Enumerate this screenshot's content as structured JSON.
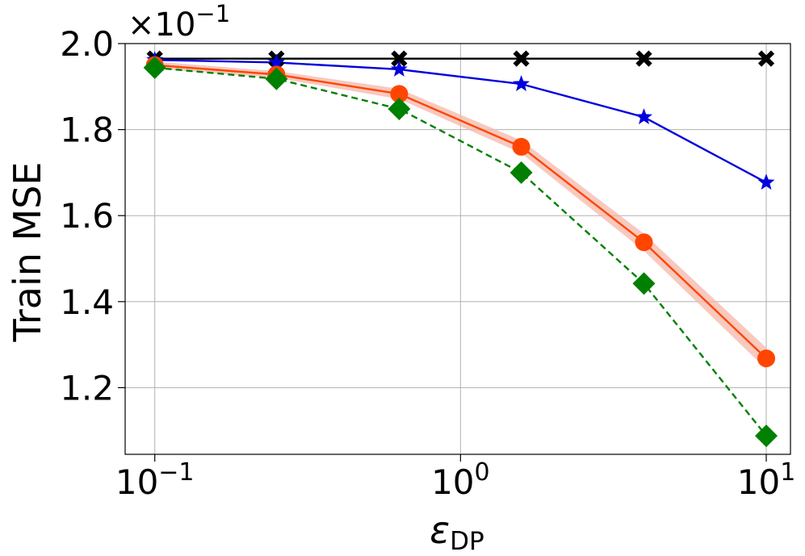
{
  "chart_data": {
    "type": "line",
    "xscale": "log",
    "xlabel_main": "ε",
    "xlabel_sub": "DP",
    "ylabel": "Train MSE",
    "y_multiplier_label": "×10",
    "y_multiplier_exp": "−1",
    "xlim": [
      0.08,
      12.0
    ],
    "ylim": [
      1.045,
      2.0
    ],
    "grid": true,
    "legend": "none",
    "x_ticks": [
      {
        "value": 0.1,
        "base": "10",
        "exp": "−1"
      },
      {
        "value": 1,
        "base": "10",
        "exp": "0"
      },
      {
        "value": 10,
        "base": "10",
        "exp": "1"
      }
    ],
    "y_ticks": [
      {
        "value": 1.2,
        "label": "1.2"
      },
      {
        "value": 1.4,
        "label": "1.4"
      },
      {
        "value": 1.6,
        "label": "1.6"
      },
      {
        "value": 1.8,
        "label": "1.8"
      },
      {
        "value": 2.0,
        "label": "2.0"
      }
    ],
    "x": [
      0.1,
      0.25,
      0.63,
      1.58,
      3.98,
      10.0
    ],
    "series": [
      {
        "color": "#000000",
        "linestyle": "solid",
        "marker": "x",
        "values": [
          1.965,
          1.965,
          1.965,
          1.965,
          1.965,
          1.965
        ]
      },
      {
        "color": "#0000dd",
        "linestyle": "solid",
        "marker": "star",
        "values": [
          1.962,
          1.956,
          1.94,
          1.906,
          1.829,
          1.677
        ]
      },
      {
        "color": "#ff4500",
        "linestyle": "solid",
        "marker": "circle",
        "band_color": "#f6b7aa",
        "band": [
          0.008,
          0.008,
          0.012,
          0.015,
          0.02,
          0.025
        ],
        "values": [
          1.95,
          1.928,
          1.883,
          1.76,
          1.538,
          1.268
        ]
      },
      {
        "color": "#008000",
        "linestyle": "dashed",
        "marker": "diamond",
        "values": [
          1.944,
          1.918,
          1.848,
          1.7,
          1.442,
          1.088
        ]
      }
    ]
  }
}
